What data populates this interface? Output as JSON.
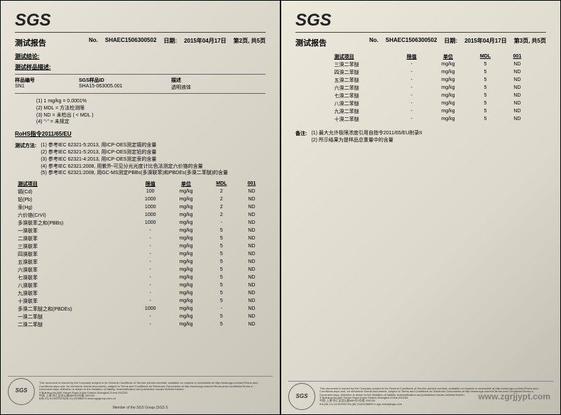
{
  "logo": "SGS",
  "watermark": "www.zgrjjypt.com",
  "left": {
    "report_title": "测试报告",
    "report_no_label": "No.",
    "report_no": "SHAEC1506300502",
    "date_label": "日期:",
    "date": "2015年04月17日",
    "page_info": "第2页, 共5页",
    "test_conclusion": "测试结论:",
    "sample_desc_title": "测试样品描述:",
    "sample_header": {
      "c1": "样品编号",
      "c2": "SGS样品ID",
      "c3": "描述"
    },
    "sample_row": {
      "c1": "SN1",
      "c2": "SHA15-063005.001",
      "c3": "透明液体"
    },
    "notes": [
      "(1) 1 mg/kg = 0.0001%",
      "(2) MDL = 方法检测限",
      "(3) ND = 未检出 ( < MDL )",
      "(4) \"-\" = 未规定"
    ],
    "rohs_title": "RoHS指令2011/65/EU",
    "method_label": "测试方法:",
    "methods": [
      "(1) 参考IEC 62321-5:2013, 用ICP-OES测定镉的含量",
      "(2) 参考IEC 62321-5:2013, 用ICP-OES测定铅的含量",
      "(3) 参考IEC 62321-4:2013, 用ICP-OES测定汞的含量",
      "(4) 参考IEC 62321:2008, 用紫外-可见分光光度计比色法测定六价铬的含量",
      "(5) 参考IEC 62321:2008, 用GC-MS测定PBBs(多溴联苯)和PBDEs(多溴二苯醚)的含量"
    ],
    "table_header": {
      "item": "测试项目",
      "limit": "限值",
      "unit": "单位",
      "mdl": "MDL",
      "res": "001"
    },
    "rows": [
      {
        "item": "镉(Cd)",
        "limit": "100",
        "unit": "mg/kg",
        "mdl": "2",
        "res": "ND"
      },
      {
        "item": "铅(Pb)",
        "limit": "1000",
        "unit": "mg/kg",
        "mdl": "2",
        "res": "ND"
      },
      {
        "item": "汞(Hg)",
        "limit": "1000",
        "unit": "mg/kg",
        "mdl": "2",
        "res": "ND"
      },
      {
        "item": "六价铬(CrVI)",
        "limit": "1000",
        "unit": "mg/kg",
        "mdl": "2",
        "res": "ND"
      },
      {
        "item": "多溴联苯之和(PBBs)",
        "limit": "1000",
        "unit": "mg/kg",
        "mdl": "-",
        "res": "ND"
      },
      {
        "item": "一溴联苯",
        "limit": "-",
        "unit": "mg/kg",
        "mdl": "5",
        "res": "ND"
      },
      {
        "item": "二溴联苯",
        "limit": "-",
        "unit": "mg/kg",
        "mdl": "5",
        "res": "ND"
      },
      {
        "item": "三溴联苯",
        "limit": "-",
        "unit": "mg/kg",
        "mdl": "5",
        "res": "ND"
      },
      {
        "item": "四溴联苯",
        "limit": "-",
        "unit": "mg/kg",
        "mdl": "5",
        "res": "ND"
      },
      {
        "item": "五溴联苯",
        "limit": "-",
        "unit": "mg/kg",
        "mdl": "5",
        "res": "ND"
      },
      {
        "item": "六溴联苯",
        "limit": "-",
        "unit": "mg/kg",
        "mdl": "5",
        "res": "ND"
      },
      {
        "item": "七溴联苯",
        "limit": "-",
        "unit": "mg/kg",
        "mdl": "5",
        "res": "ND"
      },
      {
        "item": "八溴联苯",
        "limit": "-",
        "unit": "mg/kg",
        "mdl": "5",
        "res": "ND"
      },
      {
        "item": "九溴联苯",
        "limit": "-",
        "unit": "mg/kg",
        "mdl": "5",
        "res": "ND"
      },
      {
        "item": "十溴联苯",
        "limit": "-",
        "unit": "mg/kg",
        "mdl": "5",
        "res": "ND"
      },
      {
        "item": "多溴二苯醚之和(PBDEs)",
        "limit": "1000",
        "unit": "mg/kg",
        "mdl": "-",
        "res": "ND"
      },
      {
        "item": "一溴二苯醚",
        "limit": "-",
        "unit": "mg/kg",
        "mdl": "5",
        "res": "ND"
      },
      {
        "item": "二溴二苯醚",
        "limit": "-",
        "unit": "mg/kg",
        "mdl": "5",
        "res": "ND"
      }
    ]
  },
  "right": {
    "report_title": "测试报告",
    "report_no": "SHAEC1506300502",
    "date": "2015年04月17日",
    "page_info": "第3页, 共5页",
    "table_header": {
      "item": "测试项目",
      "limit": "限值",
      "unit": "单位",
      "mdl": "MDL",
      "res": "001"
    },
    "rows": [
      {
        "item": "三溴二苯醚",
        "limit": "-",
        "unit": "mg/kg",
        "mdl": "5",
        "res": "ND"
      },
      {
        "item": "四溴二苯醚",
        "limit": "-",
        "unit": "mg/kg",
        "mdl": "5",
        "res": "ND"
      },
      {
        "item": "五溴二苯醚",
        "limit": "-",
        "unit": "mg/kg",
        "mdl": "5",
        "res": "ND"
      },
      {
        "item": "六溴二苯醚",
        "limit": "-",
        "unit": "mg/kg",
        "mdl": "5",
        "res": "ND"
      },
      {
        "item": "七溴二苯醚",
        "limit": "-",
        "unit": "mg/kg",
        "mdl": "5",
        "res": "ND"
      },
      {
        "item": "八溴二苯醚",
        "limit": "-",
        "unit": "mg/kg",
        "mdl": "5",
        "res": "ND"
      },
      {
        "item": "九溴二苯醚",
        "limit": "-",
        "unit": "mg/kg",
        "mdl": "5",
        "res": "ND"
      },
      {
        "item": "十溴二苯醚",
        "limit": "-",
        "unit": "mg/kg",
        "mdl": "5",
        "res": "ND"
      }
    ],
    "remark_label": "备注:",
    "remarks": [
      "(1) 最大允许极限浓度引用自指令2011/65/EU附录II",
      "(2) 所示结果为提样品总重量中的含量"
    ]
  },
  "footer": {
    "disclaimer": "This document is issued by the Company subject to its General Conditions of Service printed overleaf, available on request or accessible at http://www.sgs.com/en/Terms-and-Conditions.aspx and, for electronic format documents, subject to Terms and Conditions for Electronic Documents at http://www.sgs.com/en/Terms-and-Conditions/Terms-e-Document.aspx. Attention is drawn to the limitation of liability, indemnification and jurisdiction issues defined therein.",
    "addr_cn": "中国·上海·徐汇区宜山路889号3号楼  200233",
    "addr_en": "3\"Building,No.889 Yishan Road Xuhui District,Shanghai China  200233",
    "tel": "t(86-21) 61402553  f(86-21) 64958679  www.sgsgroup.com.cn",
    "tel2": "tHL(86-21) 61402594  fHL(86-21)61156899  e sgs.china@sgs.com",
    "member": "Member of the SGS Group (SGS S"
  }
}
